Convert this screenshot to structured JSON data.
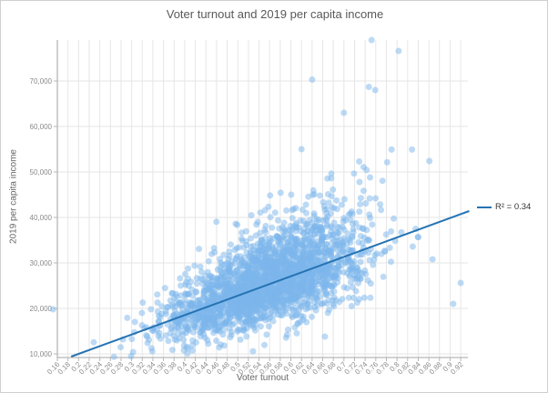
{
  "chart_data": {
    "type": "scatter",
    "title": "Voter turnout and 2019 per capita income",
    "xlabel": "Voter turnout",
    "ylabel": "2019 per capita income",
    "x_ticks": [
      "0.16",
      "0.18",
      "0.2",
      "0.22",
      "0.24",
      "0.26",
      "0.28",
      "0.3",
      "0.32",
      "0.34",
      "0.36",
      "0.38",
      "0.4",
      "0.42",
      "0.44",
      "0.46",
      "0.48",
      "0.5",
      "0.52",
      "0.54",
      "0.56",
      "0.58",
      "0.6",
      "0.62",
      "0.64",
      "0.66",
      "0.68",
      "0.7",
      "0.72",
      "0.74",
      "0.76",
      "0.78",
      "0.8",
      "0.82",
      "0.84",
      "0.86",
      "0.88",
      "0.9",
      "0.92"
    ],
    "y_ticks": [
      {
        "label": "10,000",
        "value": 10000
      },
      {
        "label": "20,000",
        "value": 20000
      },
      {
        "label": "30,000",
        "value": 30000
      },
      {
        "label": "40,000",
        "value": 40000
      },
      {
        "label": "50,000",
        "value": 50000
      },
      {
        "label": "60,000",
        "value": 60000
      },
      {
        "label": "70,000",
        "value": 70000
      }
    ],
    "xlim": [
      0.15,
      0.935
    ],
    "ylim": [
      9200,
      80000
    ],
    "grid": true,
    "legend": {
      "label": "R² = 0.34",
      "position": "right"
    },
    "trendline": {
      "x1": 0.186,
      "y1": 9400,
      "x2": 0.936,
      "y2": 41400,
      "r_squared": 0.34
    },
    "distribution": {
      "seed": 20,
      "n": 2400,
      "x_mean": 0.557,
      "x_sd": 0.092,
      "x_min": 0.175,
      "x_max": 0.915,
      "trend_intercept": 1464,
      "trend_slope": 42667,
      "noise_base": 2200,
      "noise_growth": 6500,
      "noise_growth_start": 0.25,
      "upper_skew": 1.35,
      "tail_prob": 0.06,
      "tail_scale": 42000,
      "y_min": 9350,
      "y_max": 79300
    },
    "outlier_points": [
      [
        0.152,
        19800
      ],
      [
        0.299,
        9500
      ],
      [
        0.64,
        70300
      ],
      [
        0.752,
        79000
      ],
      [
        0.803,
        76600
      ],
      [
        0.747,
        68700
      ],
      [
        0.759,
        68000
      ],
      [
        0.7,
        63000
      ],
      [
        0.62,
        55000
      ],
      [
        0.861,
        52400
      ],
      [
        0.867,
        30800
      ],
      [
        0.906,
        21000
      ],
      [
        0.92,
        25600
      ]
    ],
    "style": {
      "point_color": "#7cb5ec",
      "point_opacity": 0.5,
      "point_radius": 3.5,
      "trend_color": "#2573b3",
      "trend_width": 2,
      "grid_color": "#e6e6e6",
      "axis_color": "#b6b6b6",
      "tick_label_color": "#8a8a8a",
      "title_color": "#595959",
      "axis_title_color": "#666666",
      "legend_text_color": "#333333",
      "border_color": "#cfcfcf"
    }
  }
}
